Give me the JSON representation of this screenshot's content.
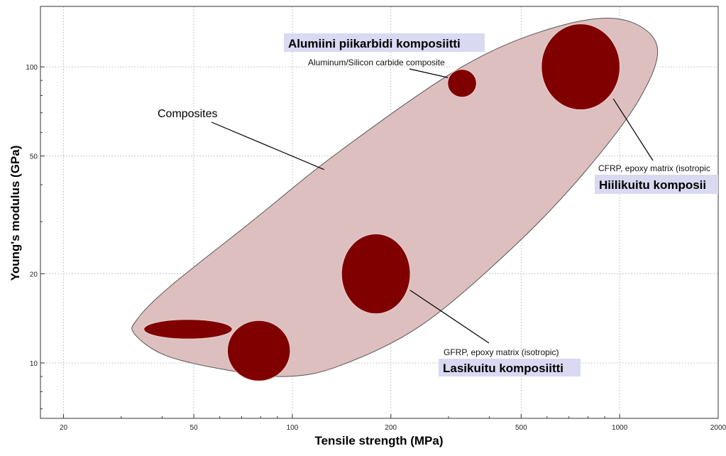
{
  "chart_data": {
    "type": "scatter",
    "xlabel": "Tensile strength (MPa)",
    "ylabel": "Young's modulus (GPa)",
    "x_scale": "log",
    "y_scale": "log",
    "xlim": [
      17,
      2000
    ],
    "ylim": [
      6.5,
      160
    ],
    "x_ticks": [
      20,
      50,
      100,
      200,
      500,
      1000,
      2000
    ],
    "y_ticks": [
      10,
      20,
      50,
      100
    ],
    "grid": true,
    "colors": {
      "envelope_fill": "#dcbcbc",
      "envelope_stroke": "#555555",
      "bubble_fill": "#800000",
      "label_highlight": "#d9d9f2"
    },
    "envelope": {
      "name": "Composites"
    },
    "bubbles": [
      {
        "id": "alsic",
        "x": 330,
        "y": 88,
        "rx_decades": 0.044,
        "ry_decades": 0.047
      },
      {
        "id": "cfrp",
        "x": 760,
        "y": 100,
        "rx_decades": 0.12,
        "ry_decades": 0.145
      },
      {
        "id": "gfrp",
        "x": 180,
        "y": 20,
        "rx_decades": 0.105,
        "ry_decades": 0.135
      },
      {
        "id": "small-1",
        "x": 79,
        "y": 11,
        "rx_decades": 0.096,
        "ry_decades": 0.102
      },
      {
        "id": "small-2",
        "x": 48,
        "y": 13,
        "rx_decades": 0.135,
        "ry_decades": 0.033
      }
    ],
    "annotations": {
      "alsic": {
        "subtitle": "Aluminum/Silicon carbide composite",
        "title": "Alumiini piikarbidi komposiitti"
      },
      "cfrp": {
        "subtitle": "CFRP, epoxy matrix (isotropic",
        "title": "Hiilikuitu komposii"
      },
      "gfrp": {
        "subtitle": "GFRP, epoxy matrix (isotropic)",
        "title": "Lasikuitu komposiitti"
      },
      "composites": {
        "label": "Composites"
      }
    }
  }
}
